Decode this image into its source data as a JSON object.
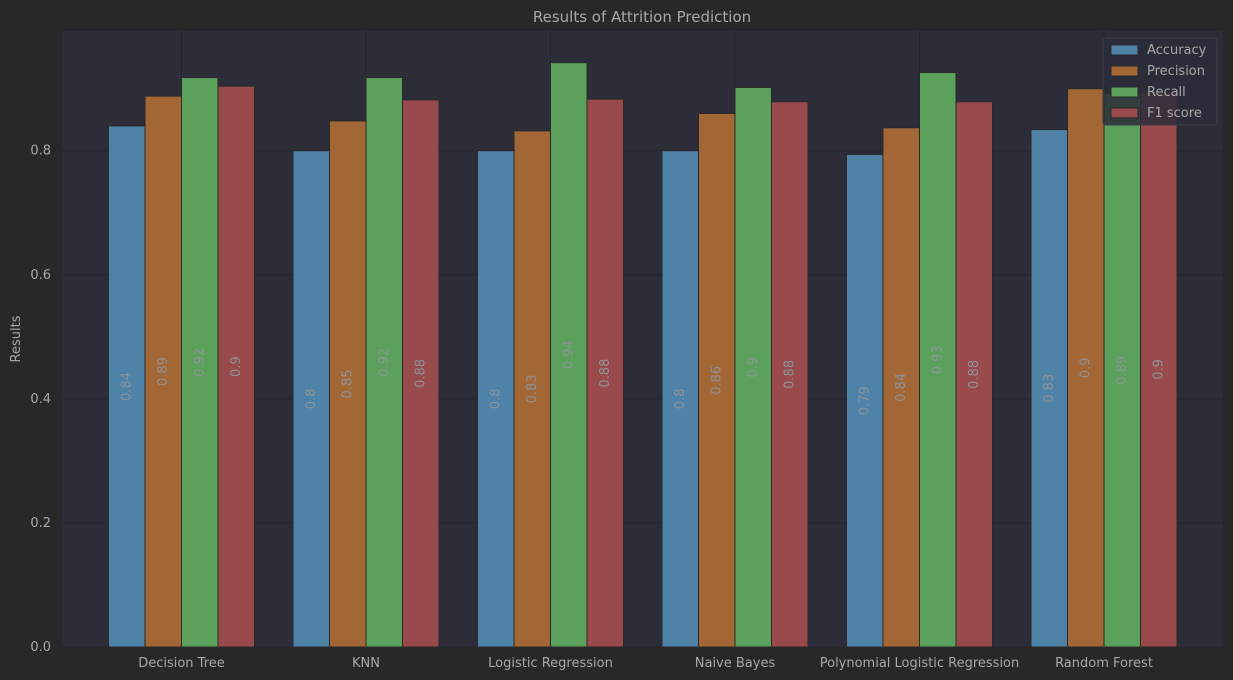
{
  "chart_data": {
    "type": "bar",
    "title": "Results of Attrition Prediction",
    "xlabel": "",
    "ylabel": "Results",
    "ylim": [
      0,
      0.993
    ],
    "yticks": [
      "0.0",
      "0.2",
      "0.4",
      "0.6",
      "0.8"
    ],
    "ytick_values": [
      0,
      0.2,
      0.4,
      0.6,
      0.8
    ],
    "grid": true,
    "legend_position": "top-right",
    "categories": [
      "Decision Tree",
      "KNN",
      "Logistic Regression",
      "Naive Bayes",
      "Polynomial Logistic Regression",
      "Random Forest"
    ],
    "series": [
      {
        "name": "Accuracy",
        "color": "#4e82a7",
        "values": [
          0.84,
          0.8,
          0.8,
          0.8,
          0.794,
          0.834
        ],
        "labels": [
          "0.84",
          "0.8",
          "0.8",
          "0.8",
          "0.79",
          "0.83"
        ]
      },
      {
        "name": "Precision",
        "color": "#a36735",
        "values": [
          0.888,
          0.848,
          0.832,
          0.86,
          0.837,
          0.9
        ],
        "labels": [
          "0.89",
          "0.85",
          "0.83",
          "0.86",
          "0.84",
          "0.9"
        ]
      },
      {
        "name": "Recall",
        "color": "#5ba05b",
        "values": [
          0.918,
          0.918,
          0.942,
          0.902,
          0.926,
          0.892
        ],
        "labels": [
          "0.92",
          "0.92",
          "0.94",
          "0.9",
          "0.93",
          "0.89"
        ]
      },
      {
        "name": "F1 score",
        "color": "#984a4d",
        "values": [
          0.904,
          0.882,
          0.883,
          0.879,
          0.879,
          0.895
        ],
        "labels": [
          "0.9",
          "0.88",
          "0.88",
          "0.88",
          "0.88",
          "0.9"
        ]
      }
    ]
  },
  "colors": {
    "page_background": "#282828",
    "plot_background": "#2c2d39",
    "grid": "#24252e",
    "text": "#a7a8a9",
    "value_label": "#8f9399"
  }
}
